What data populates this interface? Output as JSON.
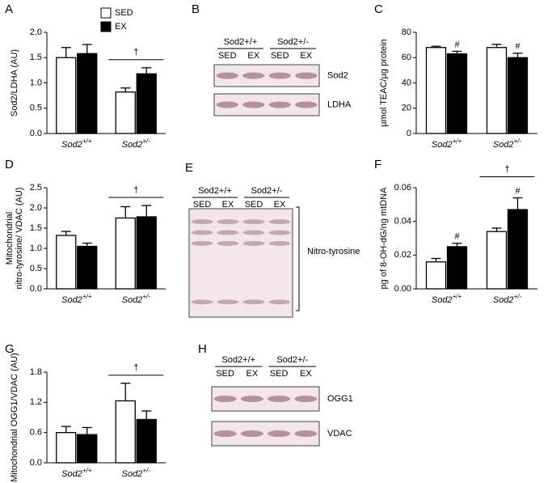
{
  "chart_data": [
    {
      "type": "bar",
      "panel": "A",
      "ylabel": "Sod2/LDHA (AU)",
      "categories": [
        "Sod2+/+",
        "Sod2+/-"
      ],
      "ylim": [
        0,
        2.0
      ],
      "yticks": [
        {
          "value": 0,
          "label": "0.0"
        },
        0.5,
        {
          "value": 1,
          "label": "1.0"
        },
        1.5,
        {
          "value": 2,
          "label": "2.0"
        }
      ],
      "group_labels": [
        null,
        "†"
      ],
      "series": [
        {
          "name": "SED",
          "color": "#ffffff",
          "values": [
            1.5,
            0.82
          ],
          "errors": [
            0.2,
            0.08
          ]
        },
        {
          "name": "EX",
          "color": "#000000",
          "values": [
            1.58,
            1.18
          ],
          "errors": [
            0.18,
            0.12
          ]
        }
      ]
    },
    {
      "type": "bar",
      "panel": "C",
      "ylabel": "µmol TEAC/µg protein",
      "categories": [
        "Sod2+/+",
        "Sod2+/-"
      ],
      "ylim": [
        0,
        80
      ],
      "yticks": [
        0,
        20,
        40,
        60,
        80
      ],
      "group_labels": [
        null,
        null
      ],
      "series": [
        {
          "color": "#ffffff",
          "values": [
            68,
            68
          ],
          "errors": [
            1,
            2.5
          ]
        },
        {
          "color": "#000000",
          "values": [
            63,
            60
          ],
          "errors": [
            2,
            3.5
          ],
          "flags": [
            "#",
            "#"
          ]
        }
      ]
    },
    {
      "type": "bar",
      "panel": "D",
      "ylabel": [
        "Mitochondrial",
        "nitro-tyrosine/ VDAC (AU)"
      ],
      "categories": [
        "Sod2+/+",
        "Sod2+/-"
      ],
      "ylim": [
        0,
        2.5
      ],
      "yticks": [
        {
          "value": 0,
          "label": "0.0"
        },
        0.5,
        {
          "value": 1,
          "label": "1.0"
        },
        1.5,
        {
          "value": 2,
          "label": "2.0"
        },
        2.5
      ],
      "group_labels": [
        null,
        "†"
      ],
      "series": [
        {
          "color": "#ffffff",
          "values": [
            1.32,
            1.75
          ],
          "errors": [
            0.1,
            0.28
          ]
        },
        {
          "color": "#000000",
          "values": [
            1.05,
            1.78
          ],
          "errors": [
            0.08,
            0.28
          ]
        }
      ]
    },
    {
      "type": "bar",
      "panel": "F",
      "ylabel": "pg of 8-OH-dG/ng mtDNA",
      "categories": [
        "Sod2+/+",
        "Sod2+/-"
      ],
      "ylim": [
        0,
        0.06
      ],
      "yticks": [
        {
          "value": 0,
          "label": "0.00"
        },
        {
          "value": 0.02,
          "label": "0.02"
        },
        {
          "value": 0.04,
          "label": "0.04"
        },
        {
          "value": 0.06,
          "label": "0.06"
        }
      ],
      "group_labels": [
        null,
        "†"
      ],
      "series": [
        {
          "color": "#ffffff",
          "values": [
            0.016,
            0.034
          ],
          "errors": [
            0.002,
            0.002
          ]
        },
        {
          "color": "#000000",
          "values": [
            0.025,
            0.047
          ],
          "errors": [
            0.002,
            0.007
          ],
          "flags": [
            "#",
            "#"
          ]
        }
      ]
    },
    {
      "type": "bar",
      "panel": "G",
      "ylabel": "Mitochondrial OGG1/VDAC (AU)",
      "categories": [
        "Sod2+/+",
        "Sod2+/-"
      ],
      "ylim": [
        0,
        1.8
      ],
      "yticks": [
        {
          "value": 0,
          "label": "0.0"
        },
        0.6,
        1.2,
        1.8
      ],
      "group_labels": [
        null,
        "†"
      ],
      "series": [
        {
          "color": "#ffffff",
          "values": [
            0.6,
            1.23
          ],
          "errors": [
            0.12,
            0.35
          ]
        },
        {
          "color": "#000000",
          "values": [
            0.56,
            0.86
          ],
          "errors": [
            0.14,
            0.17
          ]
        }
      ]
    }
  ],
  "blots": [
    {
      "panel": "B",
      "groups": [
        "Sod2+/+",
        "Sod2+/-"
      ],
      "lanes": [
        "SED",
        "EX",
        "SED",
        "EX"
      ],
      "bands": [
        "Sod2",
        "LDHA"
      ]
    },
    {
      "panel": "E",
      "groups": [
        "Sod2+/+",
        "Sod2+/-"
      ],
      "lanes": [
        "SED",
        "EX",
        "SED",
        "EX"
      ],
      "bands": [
        "Nitro-tyrosine"
      ]
    },
    {
      "panel": "H",
      "groups": [
        "Sod2+/+",
        "Sod2+/-"
      ],
      "lanes": [
        "SED",
        "EX",
        "SED",
        "EX"
      ],
      "bands": [
        "OGG1",
        "VDAC"
      ]
    }
  ]
}
